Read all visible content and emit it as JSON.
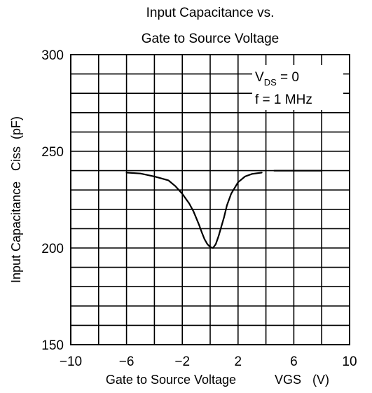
{
  "chart_data": {
    "type": "line",
    "title_lines": [
      "Input Capacitance vs.",
      "Gate to Source Voltage"
    ],
    "xlabel": "Gate to Source Voltage",
    "xlabel_symbol": "VGS",
    "xlabel_unit": "(V)",
    "ylabel": "Input Capacitance   Ciss  (pF)",
    "xlim": [
      -10,
      10
    ],
    "ylim": [
      150,
      300
    ],
    "xticks": [
      -10,
      -6,
      -2,
      2,
      6,
      10
    ],
    "yticks": [
      150,
      200,
      250,
      300
    ],
    "x_grid_step": 2,
    "y_grid_step": 10,
    "grid": true,
    "annotations": {
      "vds_symbol": "V",
      "vds_subscript": "DS",
      "vds_value": " = 0",
      "freq": "f = 1 MHz"
    },
    "series": [
      {
        "x": [
          -6.0,
          -5.0,
          -4.0,
          -3.0,
          -2.5,
          -2.0,
          -1.5,
          -1.2,
          -1.0,
          -0.8,
          -0.6,
          -0.4,
          -0.2,
          0.0,
          0.2,
          0.4,
          0.6,
          0.8,
          1.0,
          1.2,
          1.5,
          2.0,
          2.5,
          3.0,
          3.7
        ],
        "y": [
          239,
          238.5,
          237,
          235,
          232,
          228,
          223,
          219,
          215.5,
          212,
          208,
          204.5,
          202,
          200.5,
          200,
          202,
          206,
          211,
          216,
          222,
          228,
          234,
          237,
          238.3,
          239
        ]
      },
      {
        "x": [
          4.6,
          8.0
        ],
        "y": [
          240,
          240
        ]
      }
    ]
  }
}
